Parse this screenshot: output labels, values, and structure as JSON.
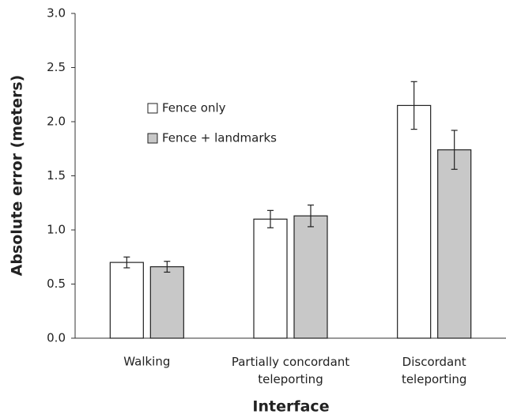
{
  "chart_data": {
    "type": "bar",
    "x_label": "Interface",
    "y_label": "Absolute error (meters)",
    "categories": [
      "Walking",
      "Partially concordant\nteleporting",
      "Discordant\nteleporting"
    ],
    "series": [
      {
        "name": "Fence only",
        "color": "#ffffff",
        "values": [
          0.7,
          1.1,
          2.15
        ],
        "errors": [
          0.05,
          0.08,
          0.22
        ]
      },
      {
        "name": "Fence + landmarks",
        "color": "#c8c8c8",
        "values": [
          0.66,
          1.13,
          1.74
        ],
        "errors": [
          0.05,
          0.1,
          0.18
        ]
      }
    ],
    "ylim": [
      0,
      3
    ],
    "yticks": [
      {
        "value": 0,
        "label": "0.0"
      },
      0.5,
      {
        "value": 1,
        "label": "1.0"
      },
      1.5,
      {
        "value": 2,
        "label": "2.0"
      },
      2.5,
      {
        "value": 3,
        "label": "3.0"
      }
    ],
    "legend": "upper left",
    "grid": false
  }
}
